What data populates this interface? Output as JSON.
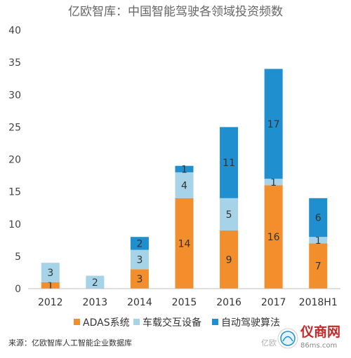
{
  "chart_data": {
    "type": "bar",
    "stacked": true,
    "title": "亿欧智库：中国智能驾驶各领域投资频数",
    "categories": [
      "2012",
      "2013",
      "2014",
      "2015",
      "2016",
      "2017",
      "2018H1"
    ],
    "series": [
      {
        "name": "ADAS系统",
        "color": "#f28e2b",
        "values": [
          1,
          0,
          3,
          14,
          9,
          16,
          7
        ]
      },
      {
        "name": "车载交互设备",
        "color": "#a6d3e8",
        "values": [
          3,
          2,
          3,
          4,
          5,
          1,
          1
        ]
      },
      {
        "name": "自动驾驶算法",
        "color": "#1f8fcf",
        "values": [
          0,
          0,
          2,
          1,
          11,
          17,
          6
        ]
      }
    ],
    "y_ticks": [
      "0",
      "5",
      "10",
      "15",
      "20",
      "25",
      "30",
      "35",
      "40"
    ],
    "ylim": [
      0,
      40
    ],
    "grid": false,
    "legend_position": "bottom",
    "source": "来源：亿欧智库人工智能企业数据库",
    "watermark": {
      "partial_text": "亿欧",
      "logo_text": "仪商网",
      "logo_url": "86ms.com"
    }
  }
}
